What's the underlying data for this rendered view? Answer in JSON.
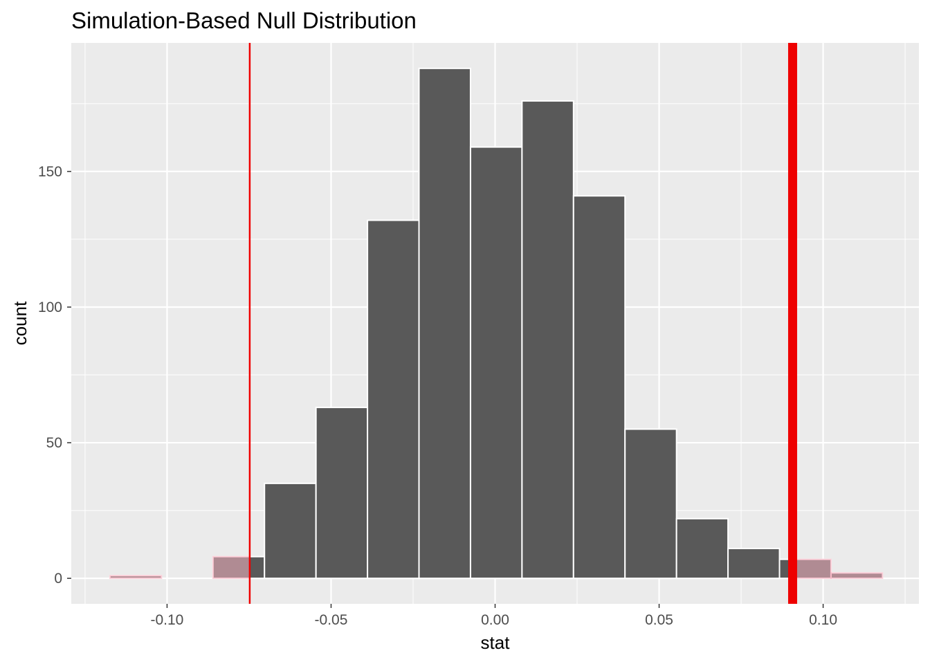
{
  "chart_data": {
    "type": "bar",
    "title": "Simulation-Based Null Distribution",
    "xlabel": "stat",
    "ylabel": "count",
    "xlim": [
      -0.1292,
      0.1292
    ],
    "ylim": [
      -9.4,
      197.4
    ],
    "x_ticks": [
      -0.1,
      -0.05,
      0.0,
      0.05,
      0.1
    ],
    "x_tick_labels": [
      "-0.10",
      "-0.05",
      "0.00",
      "0.05",
      "0.10"
    ],
    "y_ticks": [
      0,
      50,
      100,
      150
    ],
    "y_tick_labels": [
      "0",
      "50",
      "100",
      "150"
    ],
    "grid": true,
    "bin_width": 0.0157,
    "bins": [
      {
        "start": -0.1174,
        "end": -0.1017,
        "count": 1
      },
      {
        "start": -0.1017,
        "end": -0.086,
        "count": 0
      },
      {
        "start": -0.086,
        "end": -0.0703,
        "count": 8
      },
      {
        "start": -0.0703,
        "end": -0.0546,
        "count": 35
      },
      {
        "start": -0.0546,
        "end": -0.0389,
        "count": 63
      },
      {
        "start": -0.0389,
        "end": -0.0232,
        "count": 132
      },
      {
        "start": -0.0232,
        "end": -0.0075,
        "count": 188
      },
      {
        "start": -0.0075,
        "end": 0.0082,
        "count": 159
      },
      {
        "start": 0.0082,
        "end": 0.0239,
        "count": 176
      },
      {
        "start": 0.0239,
        "end": 0.0396,
        "count": 141
      },
      {
        "start": 0.0396,
        "end": 0.0553,
        "count": 55
      },
      {
        "start": 0.0553,
        "end": 0.071,
        "count": 22
      },
      {
        "start": 0.071,
        "end": 0.0867,
        "count": 11
      },
      {
        "start": 0.0867,
        "end": 0.1024,
        "count": 7
      },
      {
        "start": 0.1024,
        "end": 0.1181,
        "count": 2
      }
    ],
    "shade_left_below": -0.0748,
    "shade_right_above": 0.0907,
    "shade_color": "#f8b4c2",
    "bar_color": "#595959",
    "bar_outline": "#ffffff",
    "panel_color": "#ebebeb",
    "grid_color": "#ffffff",
    "observed_stat_line": {
      "x": 0.0907,
      "color": "#ee0000",
      "thickness": "thick"
    },
    "lower_line": {
      "x": -0.0748,
      "color": "#ee0000",
      "thickness": "thin"
    }
  }
}
